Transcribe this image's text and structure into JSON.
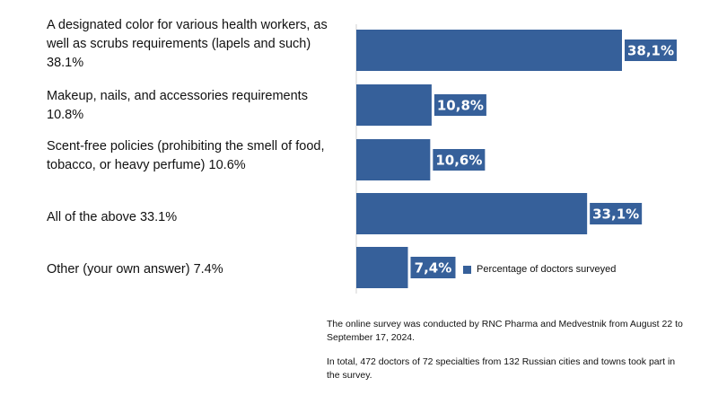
{
  "chart_data": {
    "type": "bar",
    "orientation": "horizontal",
    "categories": [
      "A designated color for various health workers, as well as scrubs requirements (lapels and such) 38.1%",
      "Makeup, nails, and accessories requirements 10.8%",
      "Scent-free policies (prohibiting the smell of food, tobacco, or heavy perfume) 10.6%",
      "All of the above 33.1%",
      "Other (your own answer) 7.4%"
    ],
    "series": [
      {
        "name": "Percentage of doctors surveyed",
        "values": [
          38.1,
          10.8,
          10.6,
          33.1,
          7.4
        ],
        "data_labels": [
          "38,1%",
          "10,8%",
          "10,6%",
          "33,1%",
          "7,4%"
        ]
      }
    ],
    "xlim": [
      0,
      40
    ],
    "grid": false,
    "legend_position": "bottom-right",
    "bar_color": "#36609a",
    "label_box_color": "#36609a"
  },
  "notes": [
    "The online survey was conducted by RNC Pharma and Medvestnik from August 22 to September 17, 2024.",
    "In total, 472 doctors of 72 specialties from 132 Russian cities and towns took part in the survey."
  ]
}
